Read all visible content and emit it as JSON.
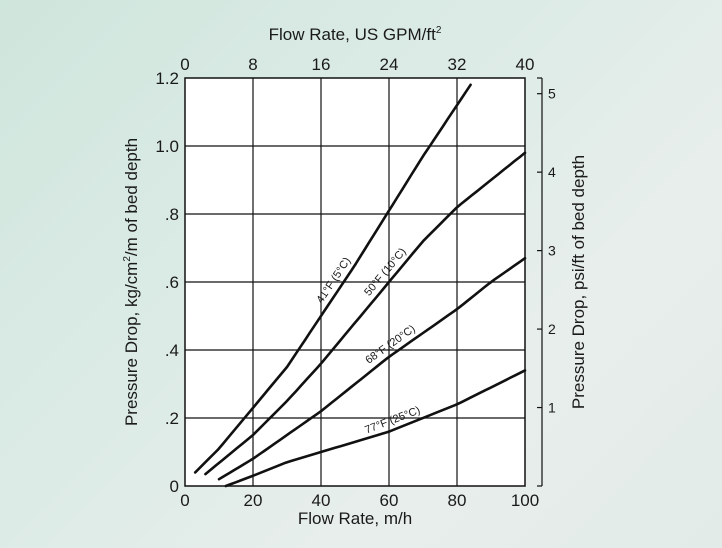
{
  "chart_data": {
    "type": "line",
    "xlabel": "Flow Rate, m/h",
    "x2label_text": "Flow Rate, US GPM/ft",
    "x2label_sup": "2",
    "ylabel_pre": "Pressure Drop, kg/cm",
    "ylabel_sup": "2",
    "ylabel_post": "/m of bed depth",
    "y2label": "Pressure Drop, psi/ft of bed depth",
    "xlim": [
      0,
      100
    ],
    "ylim": [
      0,
      1.2
    ],
    "x2lim": [
      0,
      40
    ],
    "y2lim": [
      0,
      5.2
    ],
    "x_ticks": [
      {
        "v": 0,
        "label": "0"
      },
      {
        "v": 20,
        "label": "20"
      },
      {
        "v": 40,
        "label": "40"
      },
      {
        "v": 60,
        "label": "60"
      },
      {
        "v": 80,
        "label": "80"
      },
      {
        "v": 100,
        "label": "100"
      }
    ],
    "y_ticks": [
      {
        "v": 0,
        "label": "0"
      },
      {
        "v": 0.2,
        "label": ".2"
      },
      {
        "v": 0.4,
        "label": ".4"
      },
      {
        "v": 0.6,
        "label": ".6"
      },
      {
        "v": 0.8,
        "label": ".8"
      },
      {
        "v": 1.0,
        "label": "1.0"
      },
      {
        "v": 1.2,
        "label": "1.2"
      }
    ],
    "x2_ticks": [
      {
        "v": 0,
        "label": "0"
      },
      {
        "v": 8,
        "label": "8"
      },
      {
        "v": 16,
        "label": "16"
      },
      {
        "v": 24,
        "label": "24"
      },
      {
        "v": 32,
        "label": "32"
      },
      {
        "v": 40,
        "label": "40"
      }
    ],
    "y2_ticks": [
      {
        "v": 1,
        "label": "1"
      },
      {
        "v": 2,
        "label": "2"
      },
      {
        "v": 3,
        "label": "3"
      },
      {
        "v": 4,
        "label": "4"
      },
      {
        "v": 5,
        "label": "5"
      }
    ],
    "grid": true,
    "series": [
      {
        "name": "41°F (5°C)",
        "label_at_x": 46,
        "points": [
          [
            3,
            0.04
          ],
          [
            10,
            0.11
          ],
          [
            20,
            0.23
          ],
          [
            30,
            0.35
          ],
          [
            40,
            0.5
          ],
          [
            50,
            0.65
          ],
          [
            60,
            0.81
          ],
          [
            70,
            0.97
          ],
          [
            80,
            1.12
          ],
          [
            84,
            1.18
          ]
        ]
      },
      {
        "name": "50°F (10°C)",
        "label_at_x": 61,
        "points": [
          [
            6,
            0.035
          ],
          [
            20,
            0.15
          ],
          [
            30,
            0.25
          ],
          [
            40,
            0.36
          ],
          [
            50,
            0.48
          ],
          [
            60,
            0.6
          ],
          [
            70,
            0.72
          ],
          [
            80,
            0.82
          ],
          [
            90,
            0.9
          ],
          [
            100,
            0.98
          ]
        ]
      },
      {
        "name": "68°F (20°C)",
        "label_at_x": 62,
        "points": [
          [
            10,
            0.02
          ],
          [
            20,
            0.08
          ],
          [
            30,
            0.15
          ],
          [
            40,
            0.22
          ],
          [
            50,
            0.3
          ],
          [
            60,
            0.38
          ],
          [
            70,
            0.45
          ],
          [
            80,
            0.52
          ],
          [
            90,
            0.6
          ],
          [
            100,
            0.67
          ]
        ]
      },
      {
        "name": "77°F (25°C)",
        "label_at_x": 62,
        "points": [
          [
            12,
            0.0
          ],
          [
            20,
            0.03
          ],
          [
            30,
            0.07
          ],
          [
            40,
            0.1
          ],
          [
            50,
            0.13
          ],
          [
            60,
            0.16
          ],
          [
            70,
            0.2
          ],
          [
            80,
            0.24
          ],
          [
            90,
            0.29
          ],
          [
            100,
            0.34
          ]
        ]
      }
    ]
  }
}
